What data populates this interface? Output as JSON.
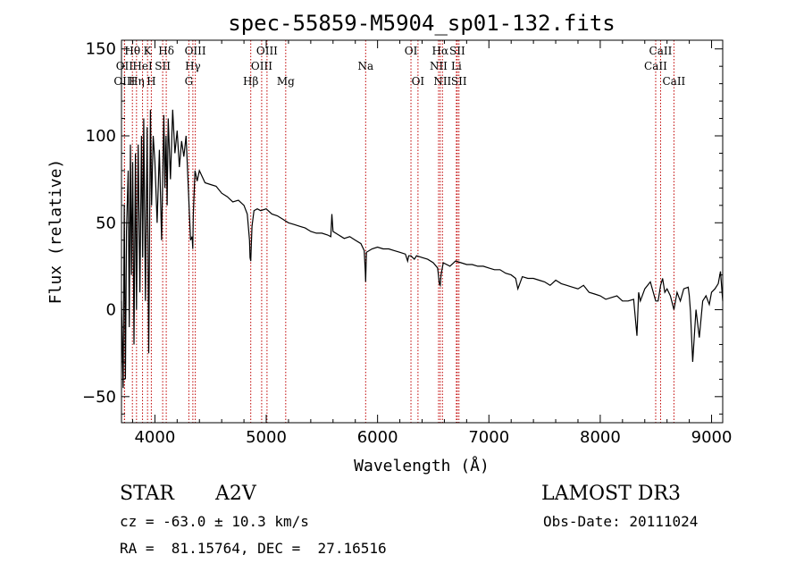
{
  "chart_data": {
    "type": "line",
    "title": "spec-55859-M5904_sp01-132.fits",
    "xlabel": "Wavelength (Å)",
    "ylabel": "Flux (relative)",
    "xlim": [
      3700,
      9100
    ],
    "ylim": [
      -65,
      155
    ],
    "xticks": [
      4000,
      5000,
      6000,
      7000,
      8000,
      9000
    ],
    "yticks": [
      -50,
      0,
      50,
      100,
      150
    ],
    "grid": false,
    "series": [
      {
        "name": "flux",
        "x": [
          3700,
          3715,
          3725,
          3735,
          3745,
          3760,
          3770,
          3780,
          3790,
          3800,
          3812,
          3825,
          3835,
          3850,
          3865,
          3880,
          3890,
          3900,
          3915,
          3930,
          3945,
          3960,
          3970,
          3985,
          4000,
          4020,
          4040,
          4060,
          4080,
          4090,
          4100,
          4110,
          4120,
          4140,
          4160,
          4180,
          4200,
          4220,
          4240,
          4260,
          4280,
          4300,
          4320,
          4335,
          4340,
          4345,
          4360,
          4380,
          4400,
          4450,
          4500,
          4550,
          4600,
          4650,
          4700,
          4750,
          4800,
          4830,
          4850,
          4855,
          4861,
          4866,
          4872,
          4890,
          4920,
          4950,
          5000,
          5050,
          5100,
          5150,
          5200,
          5250,
          5300,
          5350,
          5400,
          5450,
          5500,
          5550,
          5580,
          5590,
          5600,
          5650,
          5700,
          5750,
          5800,
          5850,
          5880,
          5890,
          5893,
          5900,
          5950,
          6000,
          6050,
          6100,
          6150,
          6200,
          6250,
          6270,
          6280,
          6300,
          6330,
          6350,
          6400,
          6450,
          6500,
          6540,
          6555,
          6563,
          6570,
          6590,
          6650,
          6700,
          6750,
          6800,
          6850,
          6900,
          6950,
          7000,
          7050,
          7100,
          7150,
          7200,
          7240,
          7260,
          7300,
          7350,
          7400,
          7450,
          7500,
          7550,
          7600,
          7650,
          7700,
          7750,
          7800,
          7850,
          7900,
          7950,
          8000,
          8050,
          8100,
          8150,
          8200,
          8250,
          8300,
          8330,
          8345,
          8360,
          8400,
          8450,
          8498,
          8520,
          8542,
          8560,
          8580,
          8600,
          8630,
          8662,
          8690,
          8720,
          8750,
          8790,
          8800,
          8810,
          8830,
          8860,
          8890,
          8920,
          8950,
          8980,
          9000,
          9030,
          9060,
          9080,
          9100
        ],
        "values": [
          5,
          -45,
          60,
          -40,
          45,
          80,
          -10,
          95,
          20,
          85,
          -20,
          90,
          0,
          95,
          10,
          100,
          30,
          110,
          5,
          105,
          -25,
          115,
          60,
          100,
          85,
          50,
          92,
          40,
          112,
          70,
          100,
          60,
          110,
          75,
          115,
          90,
          103,
          82,
          97,
          88,
          100,
          70,
          40,
          42,
          35,
          55,
          80,
          74,
          80,
          73,
          72,
          71,
          67,
          65,
          62,
          63,
          60,
          55,
          40,
          30,
          28,
          37,
          48,
          57,
          58,
          57,
          58,
          55,
          54,
          52,
          50,
          49,
          48,
          47,
          45,
          44,
          44,
          43,
          42,
          55,
          45,
          43,
          41,
          42,
          40,
          38,
          34,
          22,
          16,
          33,
          35,
          36,
          35,
          35,
          34,
          33,
          32,
          28,
          31,
          31,
          29,
          31,
          30,
          29,
          27,
          24,
          15,
          14,
          20,
          27,
          25,
          28,
          27,
          26,
          26,
          25,
          25,
          24,
          23,
          23,
          21,
          20,
          18,
          12,
          19,
          18,
          18,
          17,
          16,
          14,
          17,
          15,
          14,
          13,
          12,
          14,
          10,
          9,
          8,
          6,
          7,
          8,
          5,
          5,
          6,
          -15,
          10,
          5,
          12,
          16,
          5,
          5,
          14,
          18,
          10,
          12,
          8,
          0,
          10,
          5,
          12,
          13,
          8,
          -1,
          -30,
          0,
          -16,
          5,
          8,
          3,
          10,
          12,
          15,
          22,
          5
        ]
      }
    ],
    "spectral_lines": [
      {
        "label": "Hθ",
        "wl": 3798,
        "row": 1
      },
      {
        "label": "OII",
        "wl": 3727,
        "row": 2
      },
      {
        "label": "OIII",
        "wl": 3727,
        "row": 3
      },
      {
        "label": "HeI",
        "wl": 3889,
        "row": 2
      },
      {
        "label": "Hη",
        "wl": 3835,
        "row": 3
      },
      {
        "label": "K",
        "wl": 3934,
        "row": 1
      },
      {
        "label": "H",
        "wl": 3968,
        "row": 3
      },
      {
        "label": "SII",
        "wl": 4070,
        "row": 2
      },
      {
        "label": "Hδ",
        "wl": 4102,
        "row": 1
      },
      {
        "label": "OIII",
        "wl": 4363,
        "row": 1
      },
      {
        "label": "Hγ",
        "wl": 4341,
        "row": 2
      },
      {
        "label": "G",
        "wl": 4305,
        "row": 3
      },
      {
        "label": "Hβ",
        "wl": 4861,
        "row": 3
      },
      {
        "label": "OIII",
        "wl": 5007,
        "row": 1
      },
      {
        "label": "OIII",
        "wl": 4959,
        "row": 2
      },
      {
        "label": "Mg",
        "wl": 5175,
        "row": 3
      },
      {
        "label": "Na",
        "wl": 5893,
        "row": 2
      },
      {
        "label": "OI",
        "wl": 6300,
        "row": 1
      },
      {
        "label": "OI",
        "wl": 6363,
        "row": 3
      },
      {
        "label": "Hα",
        "wl": 6563,
        "row": 1
      },
      {
        "label": "NII",
        "wl": 6548,
        "row": 2
      },
      {
        "label": "NII",
        "wl": 6583,
        "row": 3
      },
      {
        "label": "SII",
        "wl": 6716,
        "row": 1
      },
      {
        "label": "Li",
        "wl": 6708,
        "row": 2
      },
      {
        "label": "SII",
        "wl": 6731,
        "row": 3
      },
      {
        "label": "CaII",
        "wl": 8542,
        "row": 1
      },
      {
        "label": "CaII",
        "wl": 8498,
        "row": 2
      },
      {
        "label": "CaII",
        "wl": 8662,
        "row": 3
      }
    ]
  },
  "info": {
    "object_class": "STAR",
    "subclass": "A2V",
    "cz": "cz = -63.0 ± 10.3 km/s",
    "coords": "RA =  81.15764, DEC =  27.16516",
    "survey": "LAMOST DR3",
    "obs_date": "Obs-Date: 20111024"
  },
  "colors": {
    "spectrum": "#000000",
    "line_marker": "#c00000",
    "axes": "#000000"
  }
}
